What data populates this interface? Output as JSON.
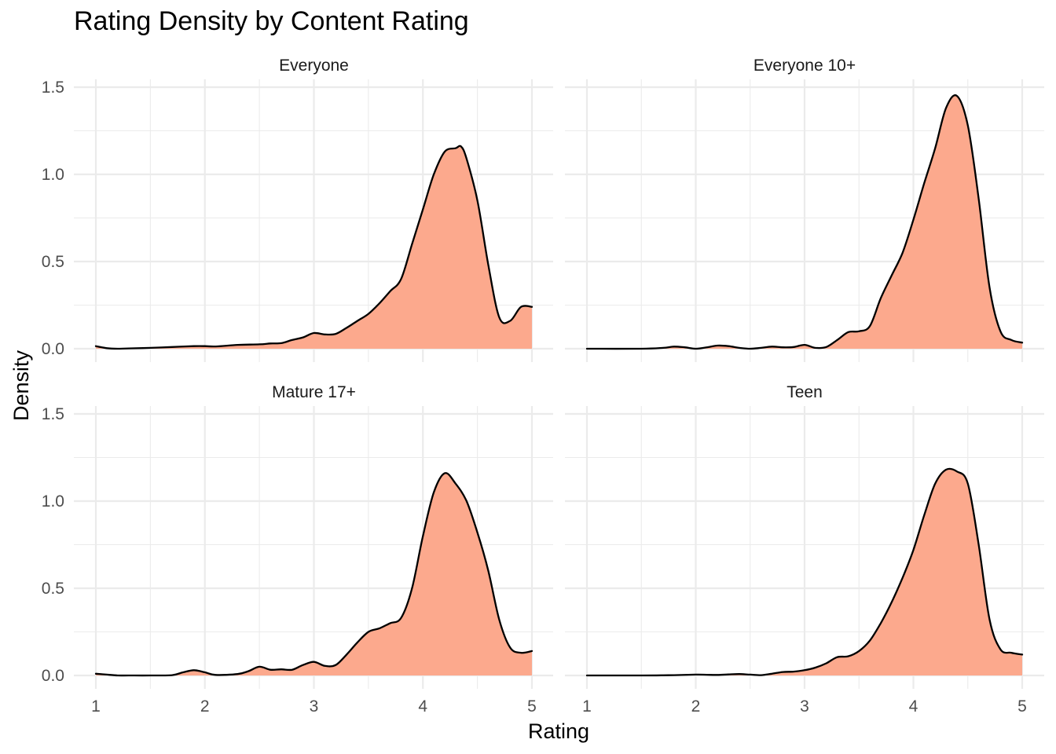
{
  "chart_data": {
    "type": "area",
    "title": "Rating Density by Content Rating",
    "xlabel": "Rating",
    "ylabel": "Density",
    "xlim": [
      1,
      5
    ],
    "ylim": [
      0,
      1.5
    ],
    "x_ticks": [
      "1",
      "2",
      "3",
      "4",
      "5"
    ],
    "y_ticks": [
      "0.0",
      "0.5",
      "1.0",
      "1.5"
    ],
    "grid": true,
    "fill_color": "#FCA98D",
    "line_color": "#000000",
    "layout": "2x2 facet grid",
    "panels": [
      {
        "name": "Everyone",
        "x": [
          1.0,
          1.1,
          1.2,
          1.3,
          1.5,
          1.7,
          1.9,
          2.0,
          2.1,
          2.3,
          2.5,
          2.6,
          2.7,
          2.8,
          2.9,
          3.0,
          3.1,
          3.2,
          3.3,
          3.4,
          3.5,
          3.6,
          3.7,
          3.8,
          3.9,
          4.0,
          4.1,
          4.2,
          4.3,
          4.35,
          4.4,
          4.5,
          4.6,
          4.7,
          4.8,
          4.9,
          5.0
        ],
        "y": [
          0.015,
          0.003,
          0.0,
          0.002,
          0.005,
          0.01,
          0.015,
          0.015,
          0.013,
          0.022,
          0.025,
          0.03,
          0.032,
          0.05,
          0.065,
          0.09,
          0.082,
          0.085,
          0.12,
          0.16,
          0.2,
          0.26,
          0.33,
          0.4,
          0.6,
          0.8,
          1.0,
          1.13,
          1.15,
          1.16,
          1.09,
          0.85,
          0.48,
          0.18,
          0.16,
          0.24,
          0.24
        ]
      },
      {
        "name": "Everyone 10+",
        "x": [
          1.0,
          1.5,
          1.7,
          1.8,
          1.9,
          2.0,
          2.1,
          2.2,
          2.3,
          2.4,
          2.5,
          2.6,
          2.7,
          2.8,
          2.9,
          3.0,
          3.1,
          3.2,
          3.3,
          3.4,
          3.5,
          3.6,
          3.7,
          3.8,
          3.9,
          4.0,
          4.1,
          4.2,
          4.3,
          4.4,
          4.5,
          4.6,
          4.7,
          4.8,
          4.9,
          5.0
        ],
        "y": [
          0.0,
          0.0,
          0.005,
          0.012,
          0.008,
          0.0,
          0.008,
          0.018,
          0.015,
          0.005,
          0.0,
          0.005,
          0.012,
          0.008,
          0.01,
          0.022,
          0.005,
          0.01,
          0.05,
          0.095,
          0.1,
          0.13,
          0.29,
          0.42,
          0.55,
          0.74,
          0.95,
          1.15,
          1.38,
          1.45,
          1.28,
          0.86,
          0.35,
          0.1,
          0.05,
          0.035
        ]
      },
      {
        "name": "Mature 17+",
        "x": [
          1.0,
          1.1,
          1.2,
          1.3,
          1.5,
          1.7,
          1.8,
          1.9,
          2.0,
          2.1,
          2.3,
          2.4,
          2.5,
          2.6,
          2.7,
          2.8,
          2.9,
          3.0,
          3.1,
          3.2,
          3.3,
          3.4,
          3.5,
          3.6,
          3.7,
          3.8,
          3.9,
          4.0,
          4.1,
          4.2,
          4.3,
          4.4,
          4.5,
          4.6,
          4.7,
          4.8,
          4.9,
          5.0
        ],
        "y": [
          0.01,
          0.005,
          0.0,
          0.0,
          0.0,
          0.002,
          0.018,
          0.03,
          0.018,
          0.003,
          0.008,
          0.025,
          0.05,
          0.033,
          0.035,
          0.033,
          0.06,
          0.078,
          0.055,
          0.06,
          0.12,
          0.19,
          0.25,
          0.27,
          0.3,
          0.33,
          0.5,
          0.8,
          1.05,
          1.16,
          1.1,
          1.0,
          0.82,
          0.6,
          0.32,
          0.16,
          0.13,
          0.14
        ]
      },
      {
        "name": "Teen",
        "x": [
          1.0,
          1.5,
          1.7,
          1.8,
          2.0,
          2.1,
          2.2,
          2.3,
          2.4,
          2.5,
          2.6,
          2.7,
          2.8,
          2.9,
          3.0,
          3.1,
          3.2,
          3.3,
          3.4,
          3.5,
          3.6,
          3.7,
          3.8,
          3.9,
          4.0,
          4.1,
          4.2,
          4.3,
          4.4,
          4.5,
          4.6,
          4.7,
          4.8,
          4.9,
          5.0
        ],
        "y": [
          0.0,
          0.0,
          0.001,
          0.002,
          0.005,
          0.004,
          0.003,
          0.006,
          0.008,
          0.005,
          0.002,
          0.01,
          0.02,
          0.022,
          0.03,
          0.045,
          0.07,
          0.105,
          0.11,
          0.14,
          0.2,
          0.3,
          0.42,
          0.56,
          0.72,
          0.92,
          1.1,
          1.18,
          1.17,
          1.1,
          0.75,
          0.32,
          0.15,
          0.13,
          0.12
        ]
      }
    ]
  }
}
